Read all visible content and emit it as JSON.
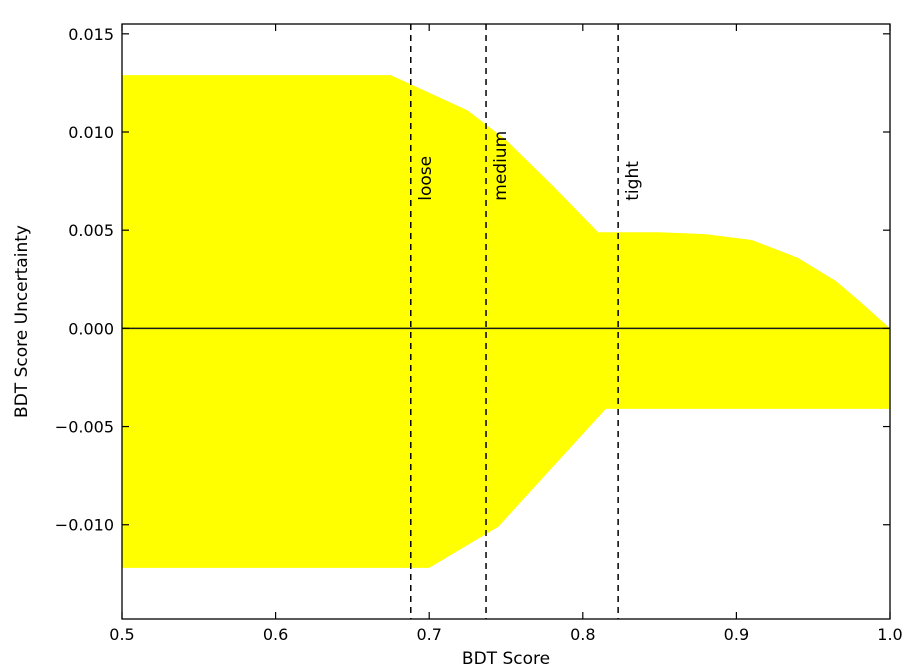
{
  "chart_data": {
    "type": "area",
    "title": "",
    "xlabel": "BDT Score",
    "ylabel": "BDT Score Uncertainty",
    "xlim": [
      0.5,
      1.0
    ],
    "ylim": [
      -0.0148,
      0.0155
    ],
    "x_ticks": [
      0.5,
      0.6,
      0.7,
      0.8,
      0.9,
      1.0
    ],
    "x_tick_labels": [
      "0.5",
      "0.6",
      "0.7",
      "0.8",
      "0.9",
      "1.0"
    ],
    "y_ticks": [
      -0.01,
      -0.005,
      0.0,
      0.005,
      0.01,
      0.015
    ],
    "y_tick_labels": [
      "−0.010",
      "−0.005",
      "0.000",
      "0.005",
      "0.010",
      "0.015"
    ],
    "grid": false,
    "band_color": "#ffff00",
    "zero_line_color": "#1a1a1a",
    "upper_band": [
      [
        0.5,
        0.0129
      ],
      [
        0.675,
        0.0129
      ],
      [
        0.725,
        0.0111
      ],
      [
        0.75,
        0.0096
      ],
      [
        0.78,
        0.0073
      ],
      [
        0.81,
        0.0049
      ],
      [
        0.85,
        0.0049
      ],
      [
        0.88,
        0.0048
      ],
      [
        0.91,
        0.0045
      ],
      [
        0.94,
        0.0036
      ],
      [
        0.965,
        0.0024
      ],
      [
        0.98,
        0.0014
      ],
      [
        1.0,
        0.0
      ]
    ],
    "lower_band": [
      [
        0.5,
        -0.0122
      ],
      [
        0.7,
        -0.0122
      ],
      [
        0.745,
        -0.0101
      ],
      [
        0.815,
        -0.0041
      ],
      [
        1.0,
        -0.0041
      ]
    ],
    "cuts": [
      {
        "name": "loose",
        "x": 0.688
      },
      {
        "name": "medium",
        "x": 0.737
      },
      {
        "name": "tight",
        "x": 0.823
      }
    ]
  }
}
